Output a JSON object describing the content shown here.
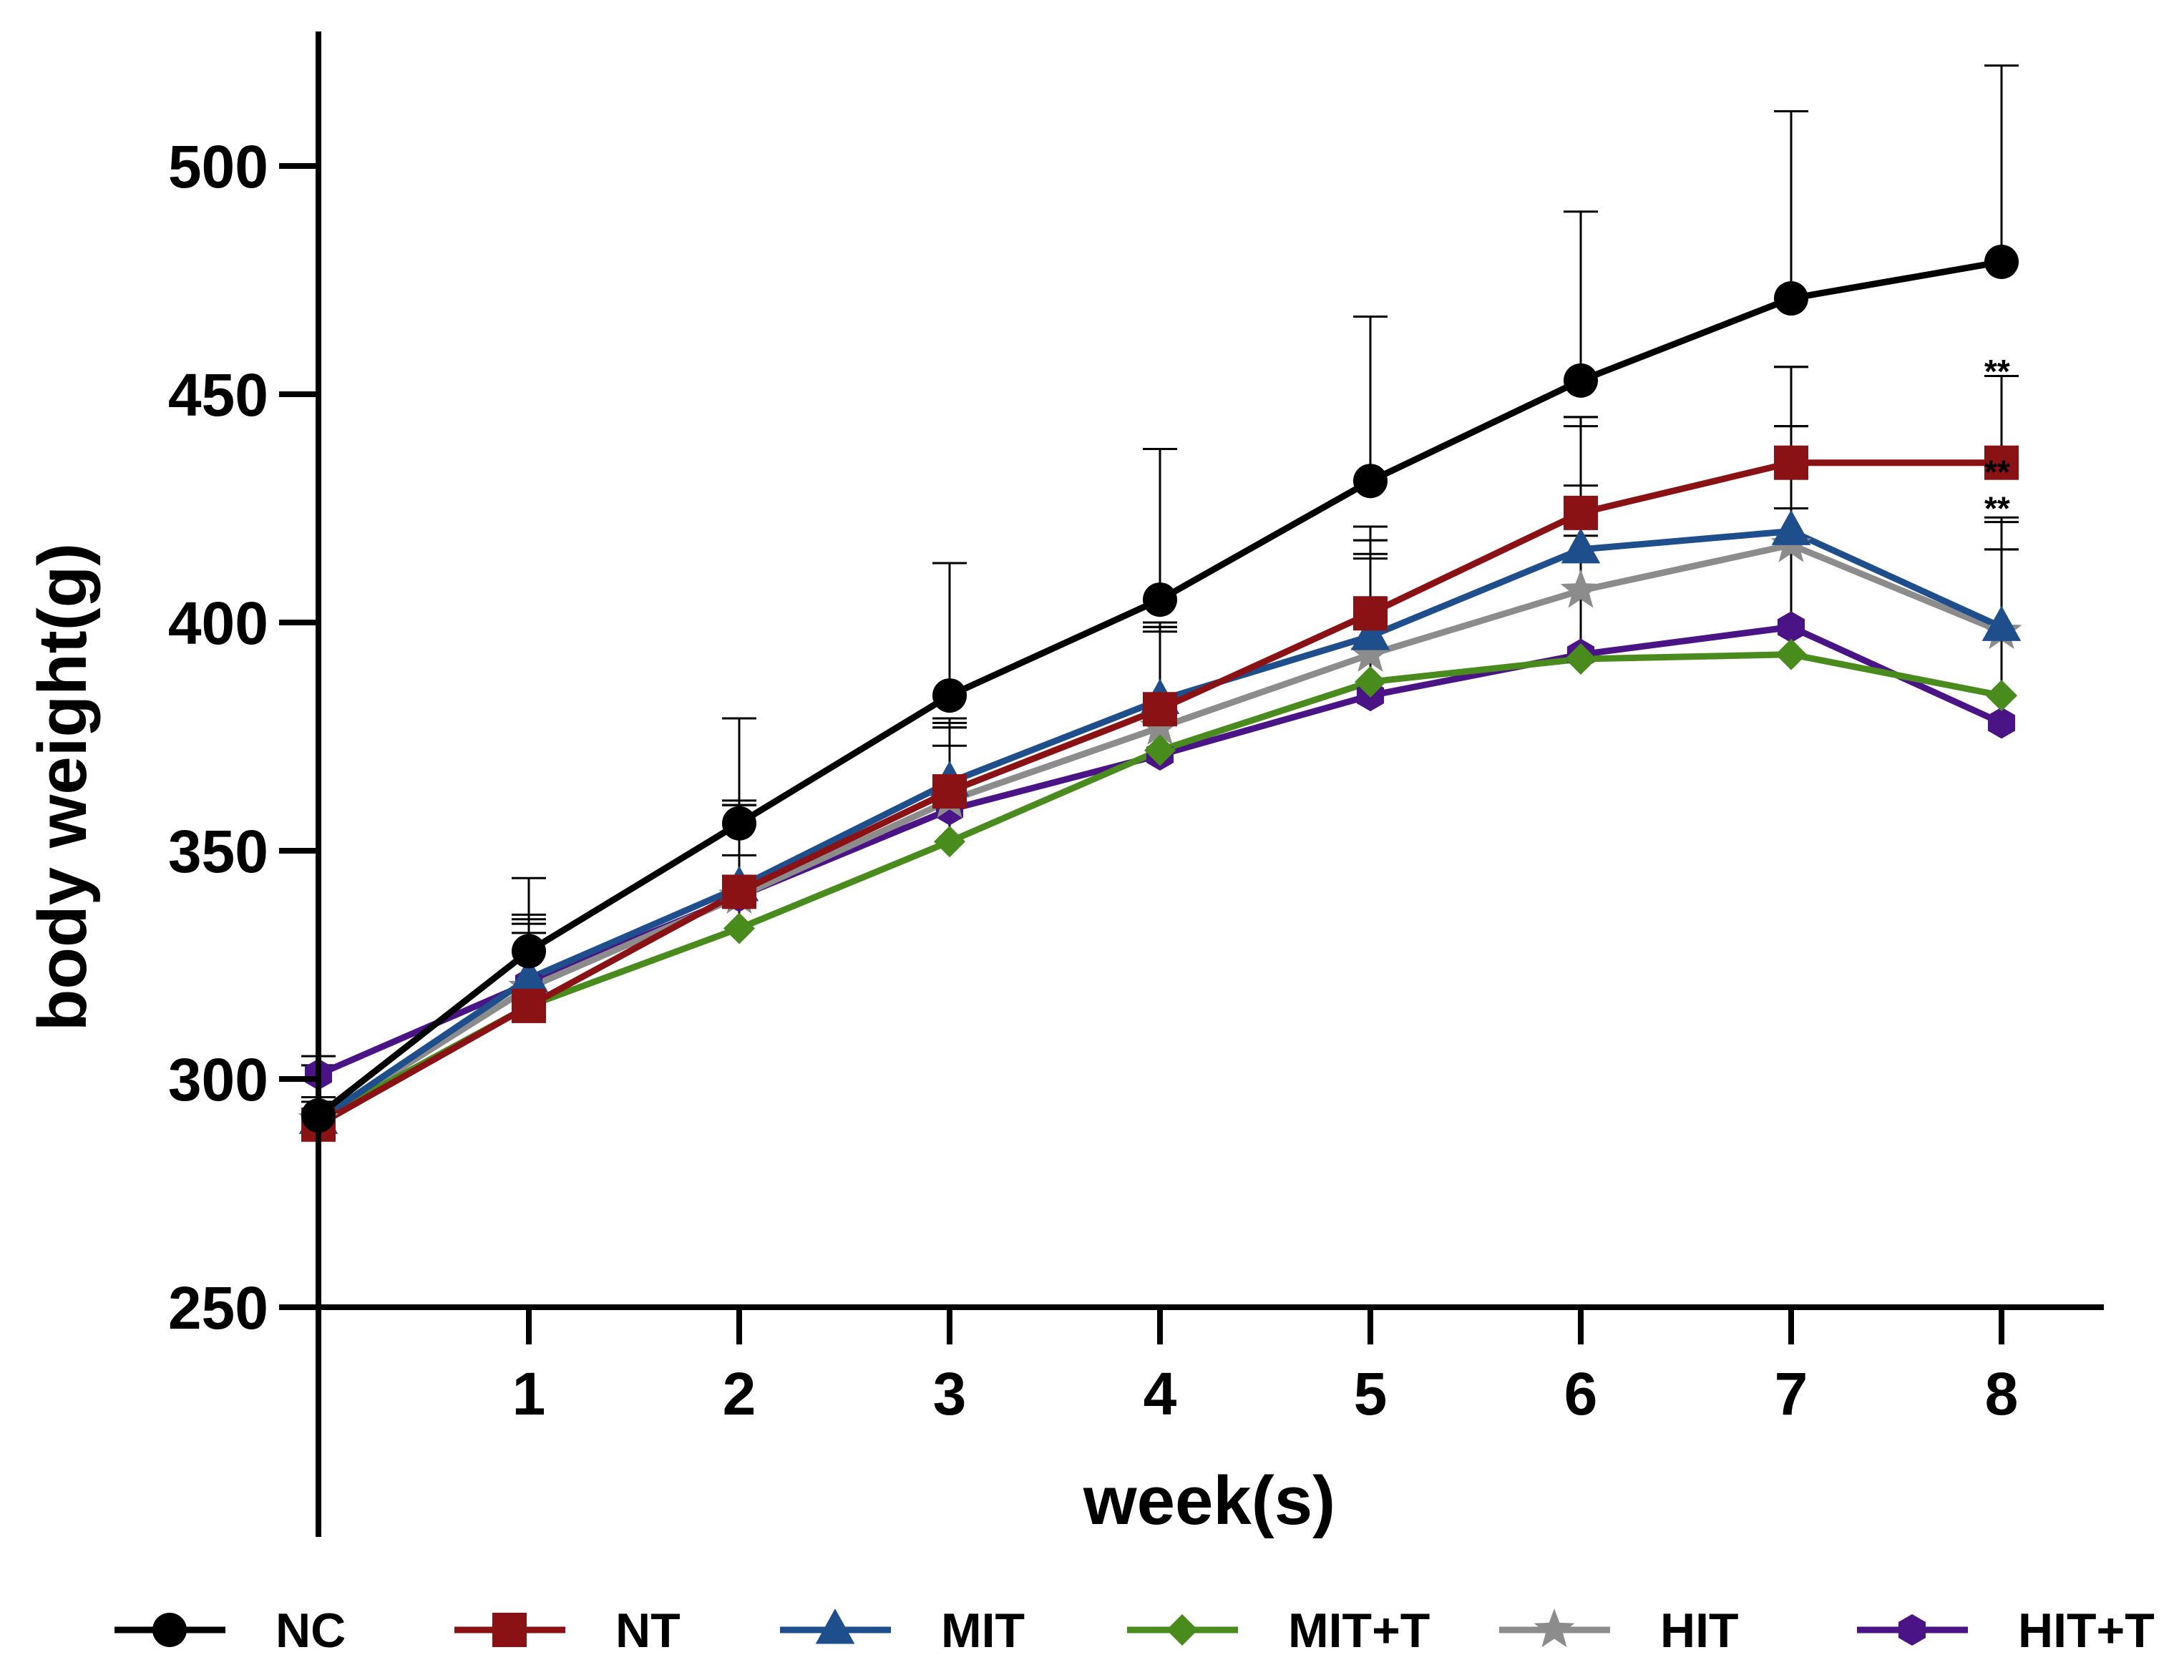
{
  "chart_data": {
    "type": "line",
    "title": "",
    "xlabel": "week(s)",
    "ylabel": "body weight(g)",
    "x": [
      0,
      1,
      2,
      3,
      4,
      5,
      6,
      7,
      8
    ],
    "x_tick_labels": [
      "1",
      "2",
      "3",
      "4",
      "5",
      "6",
      "7",
      "8"
    ],
    "y_ticks": [
      250,
      300,
      350,
      400,
      450,
      500
    ],
    "y_tick_labels": [
      "250",
      "300",
      "350",
      "400",
      "450",
      "500"
    ],
    "xlim": [
      0,
      8.5
    ],
    "ylim": [
      250,
      530
    ],
    "grid": false,
    "legend_position": "bottom",
    "series": [
      {
        "name": "NC",
        "marker": "circle",
        "color": "#000000",
        "values": [
          292,
          328,
          356,
          384,
          405,
          431,
          453,
          471,
          479
        ],
        "error": [
          11,
          16,
          23,
          29,
          33,
          36,
          37,
          41,
          43
        ]
      },
      {
        "name": "NT",
        "marker": "square",
        "color": "#8B1214",
        "values": [
          290,
          316,
          341,
          363,
          381,
          402,
          424,
          435,
          435
        ],
        "error": [
          6,
          16,
          19,
          14,
          18,
          19,
          21,
          21,
          19
        ]
      },
      {
        "name": "MIT",
        "marker": "triangle",
        "color": "#1F4E8C",
        "values": [
          291,
          322,
          342,
          365,
          383,
          397,
          416,
          420,
          399
        ],
        "error": [
          5,
          14,
          19,
          14,
          17,
          21,
          29,
          23,
          24
        ]
      },
      {
        "name": "MIT+T",
        "marker": "diamond",
        "color": "#4A8B1E",
        "values": [
          291,
          316,
          333,
          352,
          372,
          387,
          392,
          393,
          384
        ],
        "error": [
          4,
          12,
          16,
          21,
          27,
          28,
          27,
          50,
          38
        ]
      },
      {
        "name": "HIT",
        "marker": "star",
        "color": "#8C8C8C",
        "values": [
          291,
          320,
          340,
          361,
          377,
          393,
          407,
          417,
          398
        ],
        "error": [
          5,
          14,
          20,
          16,
          22,
          25,
          36,
          39,
          18
        ]
      },
      {
        "name": "HIT+T",
        "marker": "hexagon",
        "color": "#4B1486",
        "values": [
          301,
          321,
          340,
          359,
          371,
          384,
          393,
          399,
          378
        ],
        "error": [
          4,
          14,
          20,
          19,
          27,
          30,
          37,
          26,
          38
        ]
      }
    ],
    "annotations": [
      {
        "text": "**",
        "x": 8,
        "y": 455,
        "series": "NC"
      },
      {
        "text": "**",
        "x": 8,
        "y": 433,
        "series": "NT"
      },
      {
        "text": "**",
        "x": 8,
        "y": 425,
        "series": "MIT"
      }
    ]
  }
}
